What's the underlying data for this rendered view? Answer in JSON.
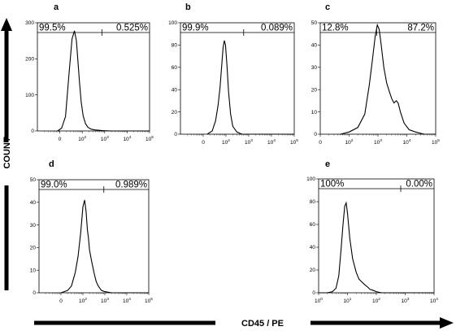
{
  "axis_titles": {
    "y": "COUNT",
    "x": "CD45 / PE"
  },
  "colors": {
    "ink": "#000000",
    "background": "#ffffff"
  },
  "chart_data": [
    {
      "panel": "a",
      "type": "area",
      "scale": "log",
      "xlim": [
        1,
        100000
      ],
      "ylim": [
        0,
        300
      ],
      "y_ticks": [
        0,
        100,
        200,
        300
      ],
      "x_tick_labels": [
        "0",
        "10^2",
        "10^3",
        "10^4",
        "10^5"
      ],
      "gate_threshold": 750,
      "gate_labels": {
        "left": "99.5%",
        "right": "0.525%"
      },
      "curve": {
        "x": [
          8,
          12,
          18,
          25,
          35,
          45,
          55,
          65,
          75,
          90,
          110,
          140,
          180,
          250,
          350,
          500,
          800,
          2000,
          100000
        ],
        "y": [
          0,
          8,
          40,
          150,
          255,
          278,
          250,
          190,
          135,
          80,
          42,
          20,
          10,
          5,
          3,
          2,
          1,
          0,
          0
        ]
      }
    },
    {
      "panel": "b",
      "type": "area",
      "scale": "log",
      "xlim": [
        1,
        100000
      ],
      "ylim": [
        0,
        100
      ],
      "y_ticks": [
        0,
        20,
        40,
        60,
        80,
        100
      ],
      "x_tick_labels": [
        "0",
        "10^2",
        "10^3",
        "10^4",
        "10^5"
      ],
      "gate_threshold": 600,
      "gate_labels": {
        "left": "99.9%",
        "right": "0.089%"
      },
      "curve": {
        "x": [
          15,
          25,
          35,
          45,
          55,
          65,
          75,
          85,
          95,
          110,
          130,
          160,
          200,
          300,
          500,
          100000
        ],
        "y": [
          0,
          3,
          12,
          26,
          42,
          62,
          78,
          84,
          80,
          62,
          38,
          18,
          7,
          2,
          0,
          0
        ]
      }
    },
    {
      "panel": "c",
      "type": "area",
      "scale": "log",
      "xlim": [
        10,
        100000
      ],
      "ylim": [
        0,
        50
      ],
      "y_ticks": [
        0,
        10,
        20,
        30,
        40,
        50
      ],
      "x_tick_labels": [
        "0",
        "10^2",
        "10^3",
        "10^4",
        "10^5"
      ],
      "gate_threshold": 900,
      "gate_labels": {
        "left": "12.8%",
        "right": "87.2%"
      },
      "curve": {
        "x": [
          50,
          100,
          200,
          350,
          500,
          650,
          800,
          950,
          1100,
          1300,
          1600,
          2000,
          2500,
          3000,
          3600,
          4300,
          5000,
          6000,
          8000,
          12000,
          20000,
          40000,
          100000
        ],
        "y": [
          0,
          1,
          3,
          9,
          22,
          34,
          44,
          49,
          47,
          40,
          30,
          23,
          19,
          16,
          14,
          15,
          14,
          10,
          5,
          2,
          1,
          0,
          0
        ]
      }
    },
    {
      "panel": "d",
      "type": "area",
      "scale": "log",
      "xlim": [
        1,
        100000
      ],
      "ylim": [
        0,
        50
      ],
      "y_ticks": [
        0,
        10,
        20,
        30,
        40,
        50
      ],
      "x_tick_labels": [
        "0",
        "10^2",
        "10^3",
        "10^4",
        "10^5"
      ],
      "gate_threshold": 900,
      "gate_labels": {
        "left": "99.0%",
        "right": "0.989%"
      },
      "curve": {
        "x": [
          10,
          20,
          30,
          45,
          60,
          80,
          100,
          120,
          140,
          160,
          180,
          200,
          250,
          320,
          400,
          500,
          700,
          1000,
          2000,
          100000
        ],
        "y": [
          0,
          1,
          3,
          9,
          16,
          27,
          38,
          41,
          36,
          28,
          24,
          19,
          14,
          9,
          5,
          3,
          1,
          0.5,
          0,
          0
        ]
      }
    },
    {
      "panel": "e",
      "type": "area",
      "scale": "log",
      "xlim": [
        1,
        10000
      ],
      "ylim": [
        0,
        100
      ],
      "y_ticks": [
        0,
        20,
        40,
        60,
        80,
        100
      ],
      "x_tick_labels": [
        "10^0",
        "10^1",
        "10^2",
        "10^3",
        "10^4"
      ],
      "gate_threshold": 700,
      "gate_labels": {
        "left": "100%",
        "right": "0.00%"
      },
      "curve": {
        "x": [
          1,
          2,
          3,
          4,
          5,
          6,
          7,
          8,
          9,
          10,
          12,
          15,
          20,
          25,
          30,
          40,
          50,
          60,
          80,
          100,
          150,
          10000
        ],
        "y": [
          0,
          0,
          1,
          4,
          15,
          38,
          60,
          76,
          79,
          70,
          48,
          30,
          18,
          12,
          10,
          7,
          5,
          3,
          2,
          1,
          0,
          0
        ]
      }
    }
  ]
}
